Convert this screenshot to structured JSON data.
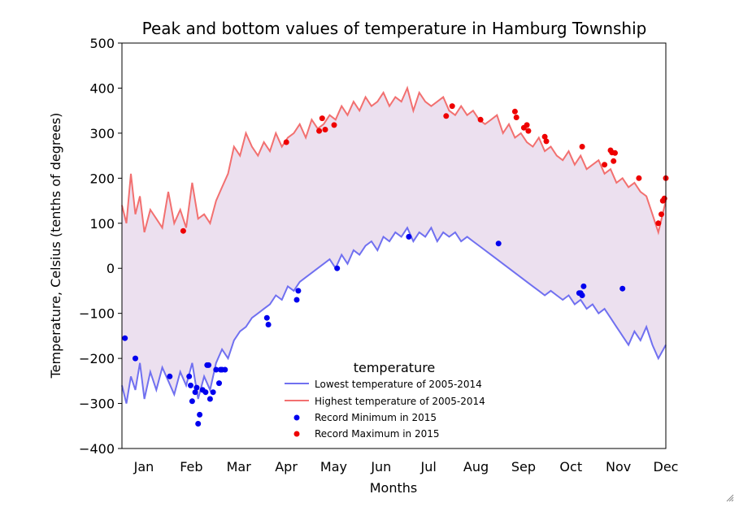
{
  "chart_data": {
    "type": "line",
    "title": "Peak and bottom values of temperature in Hamburg Township",
    "xlabel": "Months",
    "ylabel": "Temperature, Celsius (tenths of degrees)",
    "ylim": [
      -400,
      500
    ],
    "xlim_day_of_year": [
      1,
      365
    ],
    "y_ticks": [
      "500",
      "400",
      "300",
      "200",
      "100",
      "0",
      "−100",
      "−200",
      "−300",
      "−400"
    ],
    "x_ticks": [
      "Jan",
      "Feb",
      "Mar",
      "Apr",
      "May",
      "Jun",
      "Jul",
      "Aug",
      "Sep",
      "Oct",
      "Nov",
      "Dec"
    ],
    "grid": false,
    "legend": {
      "title": "temperature",
      "placement": "lower-center",
      "entries": [
        "Lowest temperature of 2005-2014",
        "Highest temperature of 2005-2014",
        "Record Minimum in 2015",
        "Record Maximum in 2015"
      ]
    },
    "colors": {
      "low_line": "#7070f0",
      "high_line": "#f27070",
      "fill": "#ece0ef",
      "min_points": "#0000ee",
      "max_points": "#ee0000"
    },
    "series": [
      {
        "name": "Lowest temperature of 2005-2014",
        "kind": "line",
        "x": [
          1,
          4,
          7,
          10,
          13,
          16,
          20,
          24,
          28,
          32,
          36,
          40,
          44,
          48,
          52,
          56,
          60,
          64,
          68,
          72,
          76,
          80,
          84,
          88,
          92,
          96,
          100,
          104,
          108,
          112,
          116,
          120,
          124,
          128,
          132,
          136,
          140,
          144,
          148,
          152,
          156,
          160,
          164,
          168,
          172,
          176,
          180,
          184,
          188,
          192,
          196,
          200,
          204,
          208,
          212,
          216,
          220,
          224,
          228,
          232,
          236,
          240,
          244,
          248,
          252,
          256,
          260,
          264,
          268,
          272,
          276,
          280,
          284,
          288,
          292,
          296,
          300,
          304,
          308,
          312,
          316,
          320,
          324,
          328,
          332,
          336,
          340,
          344,
          348,
          352,
          356,
          360,
          365
        ],
        "y": [
          -260,
          -300,
          -240,
          -270,
          -210,
          -290,
          -230,
          -270,
          -220,
          -250,
          -280,
          -230,
          -260,
          -210,
          -290,
          -240,
          -270,
          -210,
          -180,
          -200,
          -160,
          -140,
          -130,
          -110,
          -100,
          -90,
          -80,
          -60,
          -70,
          -40,
          -50,
          -30,
          -20,
          -10,
          0,
          10,
          20,
          0,
          30,
          10,
          40,
          30,
          50,
          60,
          40,
          70,
          60,
          80,
          70,
          90,
          60,
          80,
          70,
          90,
          60,
          80,
          70,
          80,
          60,
          70,
          60,
          50,
          40,
          30,
          20,
          10,
          0,
          -10,
          -20,
          -30,
          -40,
          -50,
          -60,
          -50,
          -60,
          -70,
          -60,
          -80,
          -70,
          -90,
          -80,
          -100,
          -90,
          -110,
          -130,
          -150,
          -170,
          -140,
          -160,
          -130,
          -170,
          -200,
          -170
        ]
      },
      {
        "name": "Highest temperature of 2005-2014",
        "kind": "line",
        "x": [
          1,
          4,
          7,
          10,
          13,
          16,
          20,
          24,
          28,
          32,
          36,
          40,
          44,
          48,
          52,
          56,
          60,
          64,
          68,
          72,
          76,
          80,
          84,
          88,
          92,
          96,
          100,
          104,
          108,
          112,
          116,
          120,
          124,
          128,
          132,
          136,
          140,
          144,
          148,
          152,
          156,
          160,
          164,
          168,
          172,
          176,
          180,
          184,
          188,
          192,
          196,
          200,
          204,
          208,
          212,
          216,
          220,
          224,
          228,
          232,
          236,
          240,
          244,
          248,
          252,
          256,
          260,
          264,
          268,
          272,
          276,
          280,
          284,
          288,
          292,
          296,
          300,
          304,
          308,
          312,
          316,
          320,
          324,
          328,
          332,
          336,
          340,
          344,
          348,
          352,
          356,
          360,
          365
        ],
        "y": [
          140,
          100,
          210,
          120,
          160,
          80,
          130,
          110,
          90,
          170,
          100,
          130,
          90,
          190,
          110,
          120,
          100,
          150,
          180,
          210,
          270,
          250,
          300,
          270,
          250,
          280,
          260,
          300,
          270,
          290,
          300,
          320,
          290,
          330,
          310,
          320,
          340,
          330,
          360,
          340,
          370,
          350,
          380,
          360,
          370,
          390,
          360,
          380,
          370,
          400,
          350,
          390,
          370,
          360,
          370,
          380,
          350,
          340,
          360,
          340,
          350,
          330,
          320,
          330,
          340,
          300,
          320,
          290,
          300,
          280,
          270,
          290,
          260,
          270,
          250,
          240,
          260,
          230,
          250,
          220,
          230,
          240,
          210,
          220,
          190,
          200,
          180,
          190,
          170,
          160,
          120,
          80,
          150
        ]
      },
      {
        "name": "Record Minimum in 2015",
        "kind": "scatter",
        "x": [
          3,
          10,
          33,
          46,
          47,
          48,
          50,
          51,
          52,
          53,
          55,
          57,
          58,
          59,
          60,
          62,
          64,
          66,
          67,
          68,
          70,
          98,
          99,
          118,
          119,
          145,
          193,
          253,
          307,
          308,
          309,
          310,
          336
        ],
        "y": [
          -155,
          -200,
          -240,
          -240,
          -260,
          -295,
          -275,
          -265,
          -345,
          -325,
          -270,
          -275,
          -215,
          -215,
          -290,
          -275,
          -225,
          -255,
          -225,
          -225,
          -225,
          -110,
          -125,
          -70,
          -50,
          0,
          70,
          55,
          -55,
          -55,
          -60,
          -40,
          -45
        ]
      },
      {
        "name": "Record Maximum in 2015",
        "kind": "scatter",
        "x": [
          42,
          111,
          133,
          135,
          137,
          143,
          218,
          222,
          241,
          264,
          265,
          270,
          272,
          273,
          284,
          285,
          309,
          324,
          328,
          329,
          330,
          331,
          347,
          360,
          362,
          363,
          364,
          365
        ],
        "y": [
          83,
          280,
          305,
          333,
          308,
          318,
          338,
          360,
          330,
          348,
          335,
          312,
          318,
          305,
          292,
          282,
          270,
          230,
          262,
          257,
          238,
          256,
          200,
          100,
          120,
          150,
          155,
          200
        ]
      }
    ]
  }
}
